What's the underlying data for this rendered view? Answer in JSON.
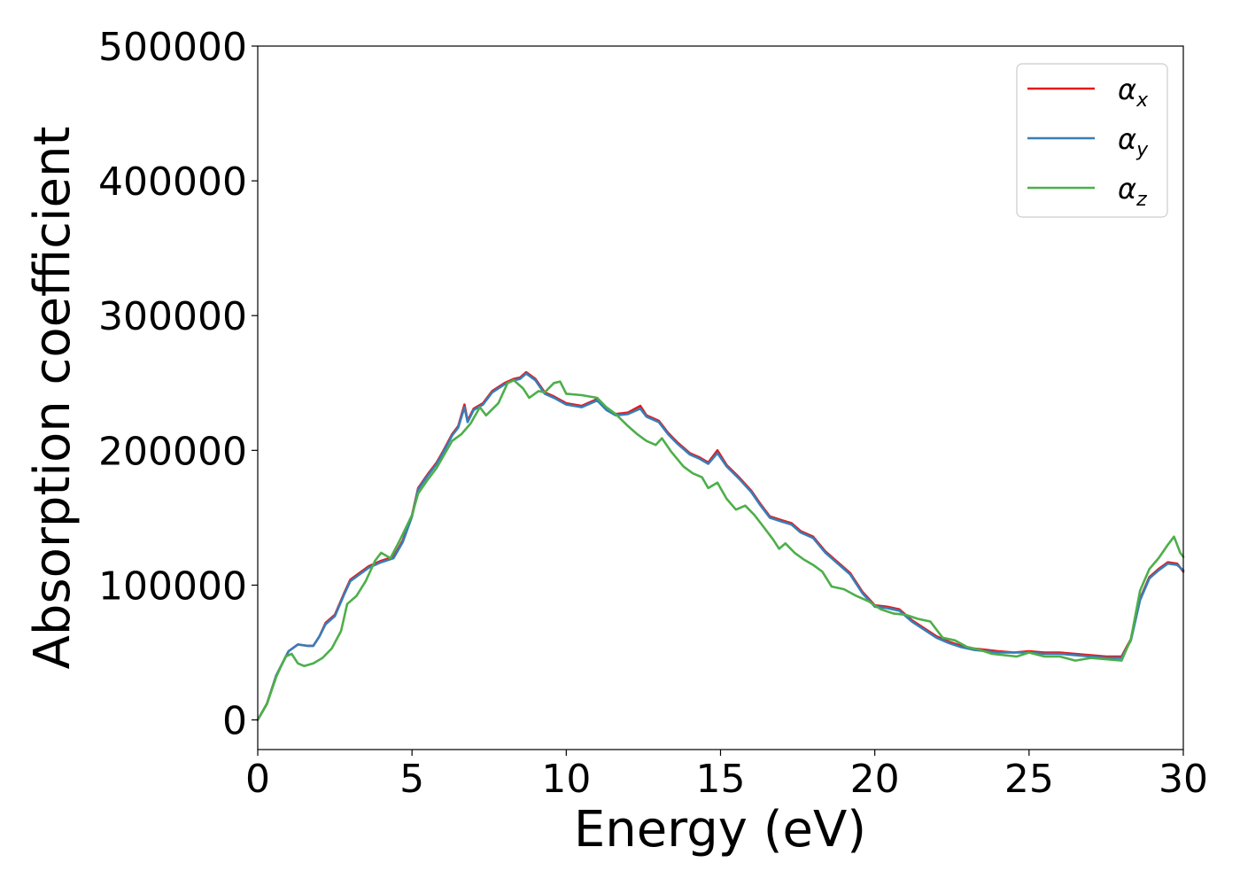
{
  "chart_data": {
    "type": "line",
    "xlabel": "Energy (eV)",
    "ylabel": "Absorption coefficient",
    "xlim": [
      0,
      30
    ],
    "ylim": [
      -22000,
      500000
    ],
    "xticks": [
      0,
      5,
      10,
      15,
      20,
      25,
      30
    ],
    "yticks": [
      0,
      100000,
      200000,
      300000,
      400000,
      500000
    ],
    "grid": false,
    "legend_position": "top-right",
    "series": [
      {
        "name": "α_x",
        "label_main": "α",
        "label_sub": "x",
        "color": "#e41a1c",
        "points": [
          [
            0,
            0
          ],
          [
            0.3,
            12000
          ],
          [
            0.6,
            33000
          ],
          [
            1.0,
            51000
          ],
          [
            1.3,
            56000
          ],
          [
            1.6,
            55000
          ],
          [
            1.8,
            55000
          ],
          [
            2.0,
            62000
          ],
          [
            2.2,
            72000
          ],
          [
            2.5,
            78000
          ],
          [
            2.8,
            94000
          ],
          [
            3.0,
            104000
          ],
          [
            3.3,
            109000
          ],
          [
            3.6,
            114000
          ],
          [
            4.0,
            118000
          ],
          [
            4.4,
            121000
          ],
          [
            4.7,
            133000
          ],
          [
            5.0,
            152000
          ],
          [
            5.2,
            172000
          ],
          [
            5.5,
            182000
          ],
          [
            5.8,
            191000
          ],
          [
            6.0,
            199000
          ],
          [
            6.3,
            212000
          ],
          [
            6.5,
            218000
          ],
          [
            6.7,
            234000
          ],
          [
            6.8,
            222000
          ],
          [
            7.0,
            231000
          ],
          [
            7.3,
            235000
          ],
          [
            7.6,
            244000
          ],
          [
            8.0,
            250000
          ],
          [
            8.3,
            253000
          ],
          [
            8.5,
            254000
          ],
          [
            8.7,
            258000
          ],
          [
            9.0,
            253000
          ],
          [
            9.3,
            243000
          ],
          [
            9.6,
            240000
          ],
          [
            10.0,
            235000
          ],
          [
            10.5,
            233000
          ],
          [
            11.0,
            238000
          ],
          [
            11.3,
            231000
          ],
          [
            11.6,
            227000
          ],
          [
            12.0,
            228000
          ],
          [
            12.4,
            233000
          ],
          [
            12.6,
            226000
          ],
          [
            13.0,
            222000
          ],
          [
            13.3,
            213000
          ],
          [
            13.6,
            206000
          ],
          [
            14.0,
            198000
          ],
          [
            14.3,
            195000
          ],
          [
            14.6,
            191000
          ],
          [
            14.9,
            200000
          ],
          [
            15.2,
            189000
          ],
          [
            15.6,
            180000
          ],
          [
            16.0,
            170000
          ],
          [
            16.3,
            160000
          ],
          [
            16.6,
            151000
          ],
          [
            17.0,
            148000
          ],
          [
            17.3,
            146000
          ],
          [
            17.6,
            140000
          ],
          [
            18.0,
            136000
          ],
          [
            18.4,
            125000
          ],
          [
            18.8,
            117000
          ],
          [
            19.2,
            109000
          ],
          [
            19.6,
            95000
          ],
          [
            20.0,
            85000
          ],
          [
            20.4,
            84000
          ],
          [
            20.8,
            82000
          ],
          [
            21.2,
            74000
          ],
          [
            21.6,
            68000
          ],
          [
            22.0,
            62000
          ],
          [
            22.4,
            58000
          ],
          [
            22.8,
            55000
          ],
          [
            23.2,
            53000
          ],
          [
            23.6,
            52000
          ],
          [
            24.0,
            51000
          ],
          [
            24.5,
            50000
          ],
          [
            25.0,
            51000
          ],
          [
            25.5,
            50000
          ],
          [
            26.0,
            50000
          ],
          [
            26.5,
            49000
          ],
          [
            27.0,
            48000
          ],
          [
            27.5,
            47000
          ],
          [
            28.0,
            47000
          ],
          [
            28.3,
            60000
          ],
          [
            28.6,
            90000
          ],
          [
            28.9,
            106000
          ],
          [
            29.2,
            112000
          ],
          [
            29.5,
            117000
          ],
          [
            29.8,
            116000
          ],
          [
            30.0,
            110000
          ]
        ]
      },
      {
        "name": "α_y",
        "label_main": "α",
        "label_sub": "y",
        "color": "#377eb8",
        "points": [
          [
            0,
            0
          ],
          [
            0.3,
            12000
          ],
          [
            0.6,
            33000
          ],
          [
            1.0,
            51000
          ],
          [
            1.3,
            56000
          ],
          [
            1.6,
            55000
          ],
          [
            1.8,
            55000
          ],
          [
            2.0,
            62000
          ],
          [
            2.2,
            71000
          ],
          [
            2.5,
            77000
          ],
          [
            2.8,
            93000
          ],
          [
            3.0,
            103000
          ],
          [
            3.3,
            108000
          ],
          [
            3.6,
            113000
          ],
          [
            4.0,
            117000
          ],
          [
            4.4,
            120000
          ],
          [
            4.7,
            132000
          ],
          [
            5.0,
            151000
          ],
          [
            5.2,
            171000
          ],
          [
            5.5,
            181000
          ],
          [
            5.8,
            190000
          ],
          [
            6.0,
            198000
          ],
          [
            6.3,
            211000
          ],
          [
            6.5,
            217000
          ],
          [
            6.7,
            232000
          ],
          [
            6.8,
            221000
          ],
          [
            7.0,
            230000
          ],
          [
            7.3,
            234000
          ],
          [
            7.6,
            243000
          ],
          [
            8.0,
            249000
          ],
          [
            8.3,
            252000
          ],
          [
            8.5,
            253000
          ],
          [
            8.7,
            257000
          ],
          [
            9.0,
            252000
          ],
          [
            9.3,
            242000
          ],
          [
            9.6,
            239000
          ],
          [
            10.0,
            234000
          ],
          [
            10.5,
            232000
          ],
          [
            11.0,
            237000
          ],
          [
            11.3,
            230000
          ],
          [
            11.6,
            226000
          ],
          [
            12.0,
            227000
          ],
          [
            12.4,
            231000
          ],
          [
            12.6,
            225000
          ],
          [
            13.0,
            221000
          ],
          [
            13.3,
            212000
          ],
          [
            13.6,
            205000
          ],
          [
            14.0,
            197000
          ],
          [
            14.3,
            194000
          ],
          [
            14.6,
            190000
          ],
          [
            14.9,
            198000
          ],
          [
            15.2,
            188000
          ],
          [
            15.6,
            179000
          ],
          [
            16.0,
            169000
          ],
          [
            16.3,
            159000
          ],
          [
            16.6,
            150000
          ],
          [
            17.0,
            147000
          ],
          [
            17.3,
            145000
          ],
          [
            17.6,
            139000
          ],
          [
            18.0,
            135000
          ],
          [
            18.4,
            124000
          ],
          [
            18.8,
            116000
          ],
          [
            19.2,
            108000
          ],
          [
            19.6,
            94000
          ],
          [
            20.0,
            84000
          ],
          [
            20.4,
            83000
          ],
          [
            20.8,
            81000
          ],
          [
            21.2,
            73000
          ],
          [
            21.6,
            67000
          ],
          [
            22.0,
            61000
          ],
          [
            22.4,
            57000
          ],
          [
            22.8,
            54000
          ],
          [
            23.2,
            52000
          ],
          [
            23.6,
            51000
          ],
          [
            24.0,
            50000
          ],
          [
            24.5,
            50000
          ],
          [
            25.0,
            50000
          ],
          [
            25.5,
            49000
          ],
          [
            26.0,
            49000
          ],
          [
            26.5,
            48000
          ],
          [
            27.0,
            47000
          ],
          [
            27.5,
            46000
          ],
          [
            28.0,
            46000
          ],
          [
            28.3,
            59000
          ],
          [
            28.6,
            89000
          ],
          [
            28.9,
            105000
          ],
          [
            29.2,
            111000
          ],
          [
            29.5,
            116000
          ],
          [
            29.8,
            115000
          ],
          [
            30.0,
            111000
          ]
        ]
      },
      {
        "name": "α_z",
        "label_main": "α",
        "label_sub": "z",
        "color": "#4daf4a",
        "points": [
          [
            0,
            0
          ],
          [
            0.3,
            12000
          ],
          [
            0.6,
            32000
          ],
          [
            0.9,
            47000
          ],
          [
            1.1,
            49000
          ],
          [
            1.3,
            42000
          ],
          [
            1.5,
            40000
          ],
          [
            1.8,
            42000
          ],
          [
            2.1,
            46000
          ],
          [
            2.4,
            53000
          ],
          [
            2.7,
            66000
          ],
          [
            2.9,
            86000
          ],
          [
            3.2,
            92000
          ],
          [
            3.5,
            103000
          ],
          [
            3.8,
            118000
          ],
          [
            4.0,
            124000
          ],
          [
            4.3,
            120000
          ],
          [
            4.6,
            133000
          ],
          [
            5.0,
            152000
          ],
          [
            5.2,
            168000
          ],
          [
            5.5,
            178000
          ],
          [
            5.8,
            187000
          ],
          [
            6.0,
            195000
          ],
          [
            6.3,
            207000
          ],
          [
            6.6,
            212000
          ],
          [
            6.9,
            220000
          ],
          [
            7.2,
            232000
          ],
          [
            7.4,
            226000
          ],
          [
            7.8,
            235000
          ],
          [
            8.1,
            250000
          ],
          [
            8.3,
            252000
          ],
          [
            8.6,
            246000
          ],
          [
            8.8,
            239000
          ],
          [
            9.1,
            244000
          ],
          [
            9.3,
            243000
          ],
          [
            9.6,
            250000
          ],
          [
            9.8,
            251000
          ],
          [
            10.0,
            242000
          ],
          [
            10.5,
            241000
          ],
          [
            11.0,
            239000
          ],
          [
            11.3,
            232000
          ],
          [
            11.6,
            227000
          ],
          [
            12.0,
            218000
          ],
          [
            12.3,
            212000
          ],
          [
            12.6,
            207000
          ],
          [
            12.9,
            204000
          ],
          [
            13.1,
            209000
          ],
          [
            13.4,
            199000
          ],
          [
            13.8,
            188000
          ],
          [
            14.1,
            183000
          ],
          [
            14.4,
            180000
          ],
          [
            14.6,
            172000
          ],
          [
            14.9,
            176000
          ],
          [
            15.2,
            164000
          ],
          [
            15.5,
            156000
          ],
          [
            15.8,
            159000
          ],
          [
            16.1,
            152000
          ],
          [
            16.4,
            143000
          ],
          [
            16.7,
            134000
          ],
          [
            16.9,
            127000
          ],
          [
            17.1,
            131000
          ],
          [
            17.4,
            124000
          ],
          [
            17.7,
            119000
          ],
          [
            18.0,
            115000
          ],
          [
            18.3,
            110000
          ],
          [
            18.6,
            99000
          ],
          [
            19.0,
            97000
          ],
          [
            19.4,
            92000
          ],
          [
            19.8,
            88000
          ],
          [
            20.2,
            82000
          ],
          [
            20.6,
            79000
          ],
          [
            21.0,
            78000
          ],
          [
            21.4,
            75000
          ],
          [
            21.8,
            73000
          ],
          [
            22.2,
            61000
          ],
          [
            22.6,
            59000
          ],
          [
            23.0,
            54000
          ],
          [
            23.4,
            52000
          ],
          [
            23.8,
            49000
          ],
          [
            24.2,
            48000
          ],
          [
            24.6,
            47000
          ],
          [
            25.0,
            50000
          ],
          [
            25.5,
            47000
          ],
          [
            26.0,
            47000
          ],
          [
            26.5,
            44000
          ],
          [
            27.0,
            46000
          ],
          [
            27.5,
            45000
          ],
          [
            28.0,
            44000
          ],
          [
            28.3,
            60000
          ],
          [
            28.6,
            96000
          ],
          [
            28.9,
            112000
          ],
          [
            29.2,
            120000
          ],
          [
            29.5,
            130000
          ],
          [
            29.7,
            136000
          ],
          [
            29.9,
            124000
          ],
          [
            30.0,
            121000
          ]
        ]
      }
    ]
  }
}
